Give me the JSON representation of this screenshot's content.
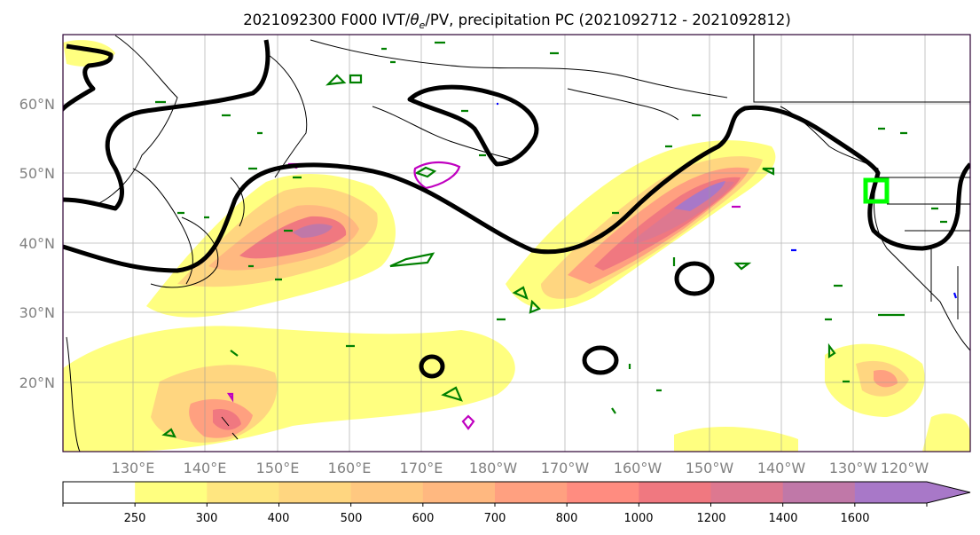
{
  "title": {
    "prefix": "2021092300 F000 IVT/",
    "theta": "θ",
    "theta_sub": "e",
    "suffix": "/PV, precipitation PC (2021092712 - 2021092812)"
  },
  "map": {
    "lat_labels": [
      "20°N",
      "30°N",
      "40°N",
      "50°N",
      "60°N"
    ],
    "lon_labels": [
      "130°E",
      "140°E",
      "150°E",
      "160°E",
      "170°E",
      "180°W",
      "170°W",
      "160°W",
      "150°W",
      "140°W",
      "130°W",
      "120°W"
    ],
    "grid": true,
    "colors": {
      "ivt_contour": "#000000",
      "theta_e_contour": "#008000",
      "pv_contour_magenta": "#c000c0",
      "pv_contour_blue": "#0000ff",
      "highlight_box": "#00ff00",
      "coastline": "#000000"
    }
  },
  "colorbar": {
    "ticks": [
      "250",
      "300",
      "400",
      "500",
      "600",
      "700",
      "800",
      "1000",
      "1200",
      "1400",
      "1600"
    ],
    "colors": [
      "#ffffff",
      "#ffff80",
      "#ffe680",
      "#ffd680",
      "#ffc880",
      "#ffb880",
      "#ffa080",
      "#ff8c80",
      "#f07880",
      "#dd7890",
      "#c078a8",
      "#a878c8"
    ],
    "extend": "max"
  }
}
